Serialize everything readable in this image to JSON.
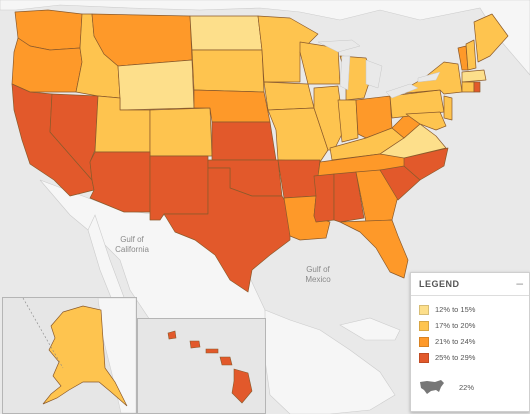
{
  "legend": {
    "title": "LEGEND",
    "collapse_icon": "minus-icon",
    "items": [
      {
        "label": "12% to 15%",
        "color": "#fddf8b"
      },
      {
        "label": "17% to 20%",
        "color": "#fec44f"
      },
      {
        "label": "21% to 24%",
        "color": "#fe9929"
      },
      {
        "label": "25% to 29%",
        "color": "#e2592b"
      }
    ],
    "national": {
      "icon": "us-map-icon",
      "label": "22%"
    }
  },
  "labels": {
    "gulf_california": [
      "Gulf of",
      "California"
    ],
    "gulf_mexico": [
      "Gulf of",
      "Mexico"
    ]
  },
  "colors": {
    "water": "#e9e9e9",
    "land_neighbor": "#f6f6f6",
    "border": "#7a4a1a",
    "c1": "#fddf8b",
    "c2": "#fec44f",
    "c3": "#fe9929",
    "c4": "#e2592b"
  }
}
